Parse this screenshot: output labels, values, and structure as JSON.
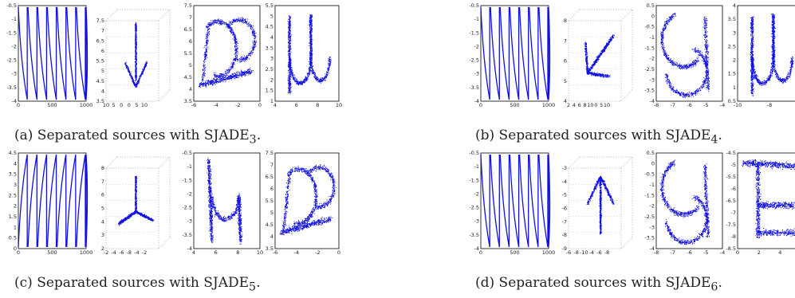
{
  "figure": {
    "panels": [
      {
        "id": "a",
        "caption_prefix": "(a) Separated sources with SJADE",
        "caption_sub": "3",
        "caption_suffix": ".",
        "plots": [
          {
            "kind": "time",
            "letter": "sawdown",
            "yticks": [
              "-0.5",
              "-1",
              "-1.5",
              "-2",
              "-2.5",
              "-3",
              "-3.5",
              "-4"
            ],
            "xticks": [
              "0",
              "500",
              "1000"
            ]
          },
          {
            "kind": "3d",
            "letter": "arrow-down",
            "yticks": [
              "7.5",
              "7",
              "6.5",
              "6",
              "5.5",
              "5",
              "4.5",
              "4",
              "3.5"
            ],
            "xticks": [
              "10",
              "5",
              "0",
              "0",
              "5",
              "10"
            ]
          },
          {
            "kind": "2d",
            "letter": "B",
            "yticks": [
              "7.5",
              "7",
              "6.5",
              "6",
              "5.5",
              "5",
              "4.5",
              "4",
              "3.5"
            ],
            "xticks": [
              "-6",
              "-4",
              "-2",
              "0"
            ]
          },
          {
            "kind": "2d",
            "letter": "mu",
            "yticks": [
              "5.5",
              "5",
              "4.5",
              "4",
              "3.5",
              "3",
              "2.5",
              "2",
              "1.5",
              "1"
            ],
            "xticks": [
              "4",
              "6",
              "8",
              "10"
            ]
          }
        ]
      },
      {
        "id": "b",
        "caption_prefix": "(b) Separated sources with SJADE",
        "caption_sub": "4",
        "caption_suffix": ".",
        "plots": [
          {
            "kind": "time",
            "letter": "sawdown",
            "yticks": [
              "-0.5",
              "-1",
              "-1.5",
              "-2",
              "-2.5",
              "-3",
              "-3.5",
              "-4"
            ],
            "xticks": [
              "0",
              "500",
              "1000"
            ]
          },
          {
            "kind": "3d",
            "letter": "arrow-diag",
            "yticks": [
              "8",
              "7",
              "6",
              "5",
              "4"
            ],
            "xticks": [
              "2",
              "4",
              "6",
              "8",
              "10",
              "0",
              "5",
              "10"
            ]
          },
          {
            "kind": "2d",
            "letter": "B-mirror",
            "yticks": [
              "0.5",
              "0",
              "-0.5",
              "-1",
              "-1.5",
              "-2",
              "-2.5",
              "-3",
              "-3.5",
              "-4"
            ],
            "xticks": [
              "-8",
              "-7",
              "-6",
              "-5",
              "-4"
            ]
          },
          {
            "kind": "2d",
            "letter": "mu",
            "yticks": [
              "4",
              "3.5",
              "3",
              "2.5",
              "2",
              "1.5",
              "1",
              "0.5"
            ],
            "xticks": [
              "-10",
              "-8",
              "-6"
            ]
          }
        ]
      },
      {
        "id": "c",
        "caption_prefix": "(c) Separated sources with SJADE",
        "caption_sub": "5",
        "caption_suffix": ".",
        "plots": [
          {
            "kind": "time",
            "letter": "sawup",
            "yticks": [
              "4.5",
              "4",
              "3.5",
              "3",
              "2.5",
              "2",
              "1.5",
              "1",
              "0.5",
              "0"
            ],
            "xticks": [
              "0",
              "500",
              "1000"
            ]
          },
          {
            "kind": "3d",
            "letter": "tripod",
            "yticks": [
              "8",
              "7",
              "6",
              "5",
              "4",
              "3",
              "2"
            ],
            "xticks": [
              "-2",
              "-4",
              "-6",
              "-8",
              "-4",
              "-2"
            ]
          },
          {
            "kind": "2d",
            "letter": "h",
            "yticks": [
              "-0.5",
              "-1",
              "-1.5",
              "-2",
              "-2.5",
              "-3",
              "-3.5",
              "-4"
            ],
            "xticks": [
              "4",
              "6",
              "8",
              "10"
            ]
          },
          {
            "kind": "2d",
            "letter": "B",
            "yticks": [
              "7.5",
              "7",
              "6.5",
              "6",
              "5.5",
              "5",
              "4.5",
              "4",
              "3.5"
            ],
            "xticks": [
              "-6",
              "-4",
              "-2",
              "0"
            ]
          }
        ]
      },
      {
        "id": "d",
        "caption_prefix": "(d) Separated sources with SJADE",
        "caption_sub": "6",
        "caption_suffix": ".",
        "plots": [
          {
            "kind": "time",
            "letter": "sawdown",
            "yticks": [
              "-0.5",
              "-1",
              "-1.5",
              "-2",
              "-2.5",
              "-3",
              "-3.5",
              "-4"
            ],
            "xticks": [
              "0",
              "500",
              "1000"
            ]
          },
          {
            "kind": "3d",
            "letter": "arrow-up",
            "yticks": [
              "-3",
              "-4",
              "-5",
              "-6",
              "-7",
              "-8",
              "-9"
            ],
            "xticks": [
              "-6",
              "-8",
              "-10",
              "-4",
              "-6",
              "-8"
            ]
          },
          {
            "kind": "2d",
            "letter": "B-mirror",
            "yticks": [
              "0.5",
              "0",
              "-0.5",
              "-1",
              "-1.5",
              "-2",
              "-2.5",
              "-3",
              "-3.5",
              "-4"
            ],
            "xticks": [
              "-8",
              "-7",
              "-6",
              "-5",
              "-4"
            ]
          },
          {
            "kind": "2d",
            "letter": "T",
            "yticks": [
              "-4.5",
              "-5",
              "-5.5",
              "-6",
              "-6.5",
              "-7",
              "-7.5",
              "-8",
              "-8.5"
            ],
            "xticks": [
              "0",
              "2",
              "4",
              "6"
            ]
          }
        ]
      }
    ],
    "colors": {
      "data": "#1010e0",
      "axis": "#000000",
      "grid": "#b8b8b8"
    }
  }
}
